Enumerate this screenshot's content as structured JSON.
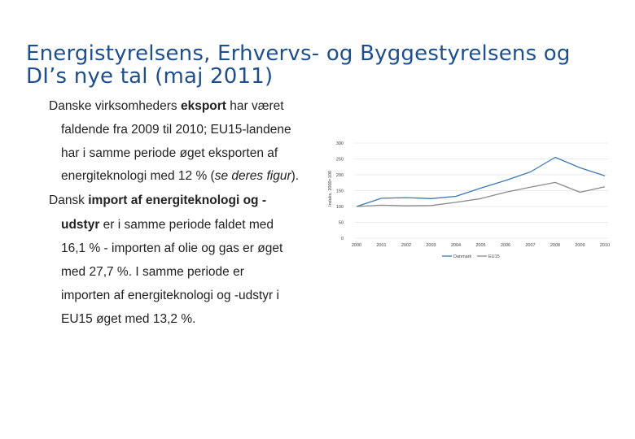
{
  "slide": {
    "title_line1": "Energistyrelsens, Erhvervs- og Byggestyrelsens og",
    "title_line2": "DI’s nye tal (maj 2011)",
    "bullet1": {
      "l1_a": "Danske virksomheders ",
      "l1_b": "eksport",
      "l1_c": " har været",
      "l2": "faldende fra 2009 til 2010; EU15-landene",
      "l3": "har i samme periode øget eksporten af",
      "l4_a": "energiteknologi med 12 % (",
      "l4_b": "se deres figur",
      "l4_c": ")."
    },
    "bullet2": {
      "l1_a": "Dansk ",
      "l1_b": "import af energiteknologi og -",
      "l2_a": "udstyr",
      "l2_b": " er i samme periode faldet med",
      "l3": "16,1 % - importen af olie og gas er øget",
      "l4": "med 27,7 %. I samme periode er",
      "l5": "importen af energiteknologi og -udstyr i",
      "l6": "EU15 øget med 13,2 %."
    }
  },
  "chart_data": {
    "type": "line",
    "title": "",
    "xlabel": "",
    "ylabel": "Indeks, 2000=100",
    "categories": [
      "2000",
      "2001",
      "2002",
      "2003",
      "2004",
      "2005",
      "2006",
      "2007",
      "2008",
      "2009",
      "2010"
    ],
    "yticks": [
      "0",
      "50",
      "100",
      "150",
      "200",
      "250",
      "300"
    ],
    "ylim": [
      0,
      300
    ],
    "grid": true,
    "legend_position": "bottom",
    "series": [
      {
        "name": "Danmark",
        "color": "#3a7ab8",
        "values": [
          100,
          126,
          128,
          125,
          132,
          158,
          182,
          209,
          255,
          222,
          197
        ]
      },
      {
        "name": "EU15",
        "color": "#8a8a8a",
        "values": [
          100,
          104,
          102,
          103,
          113,
          125,
          145,
          161,
          176,
          145,
          162
        ]
      }
    ]
  }
}
